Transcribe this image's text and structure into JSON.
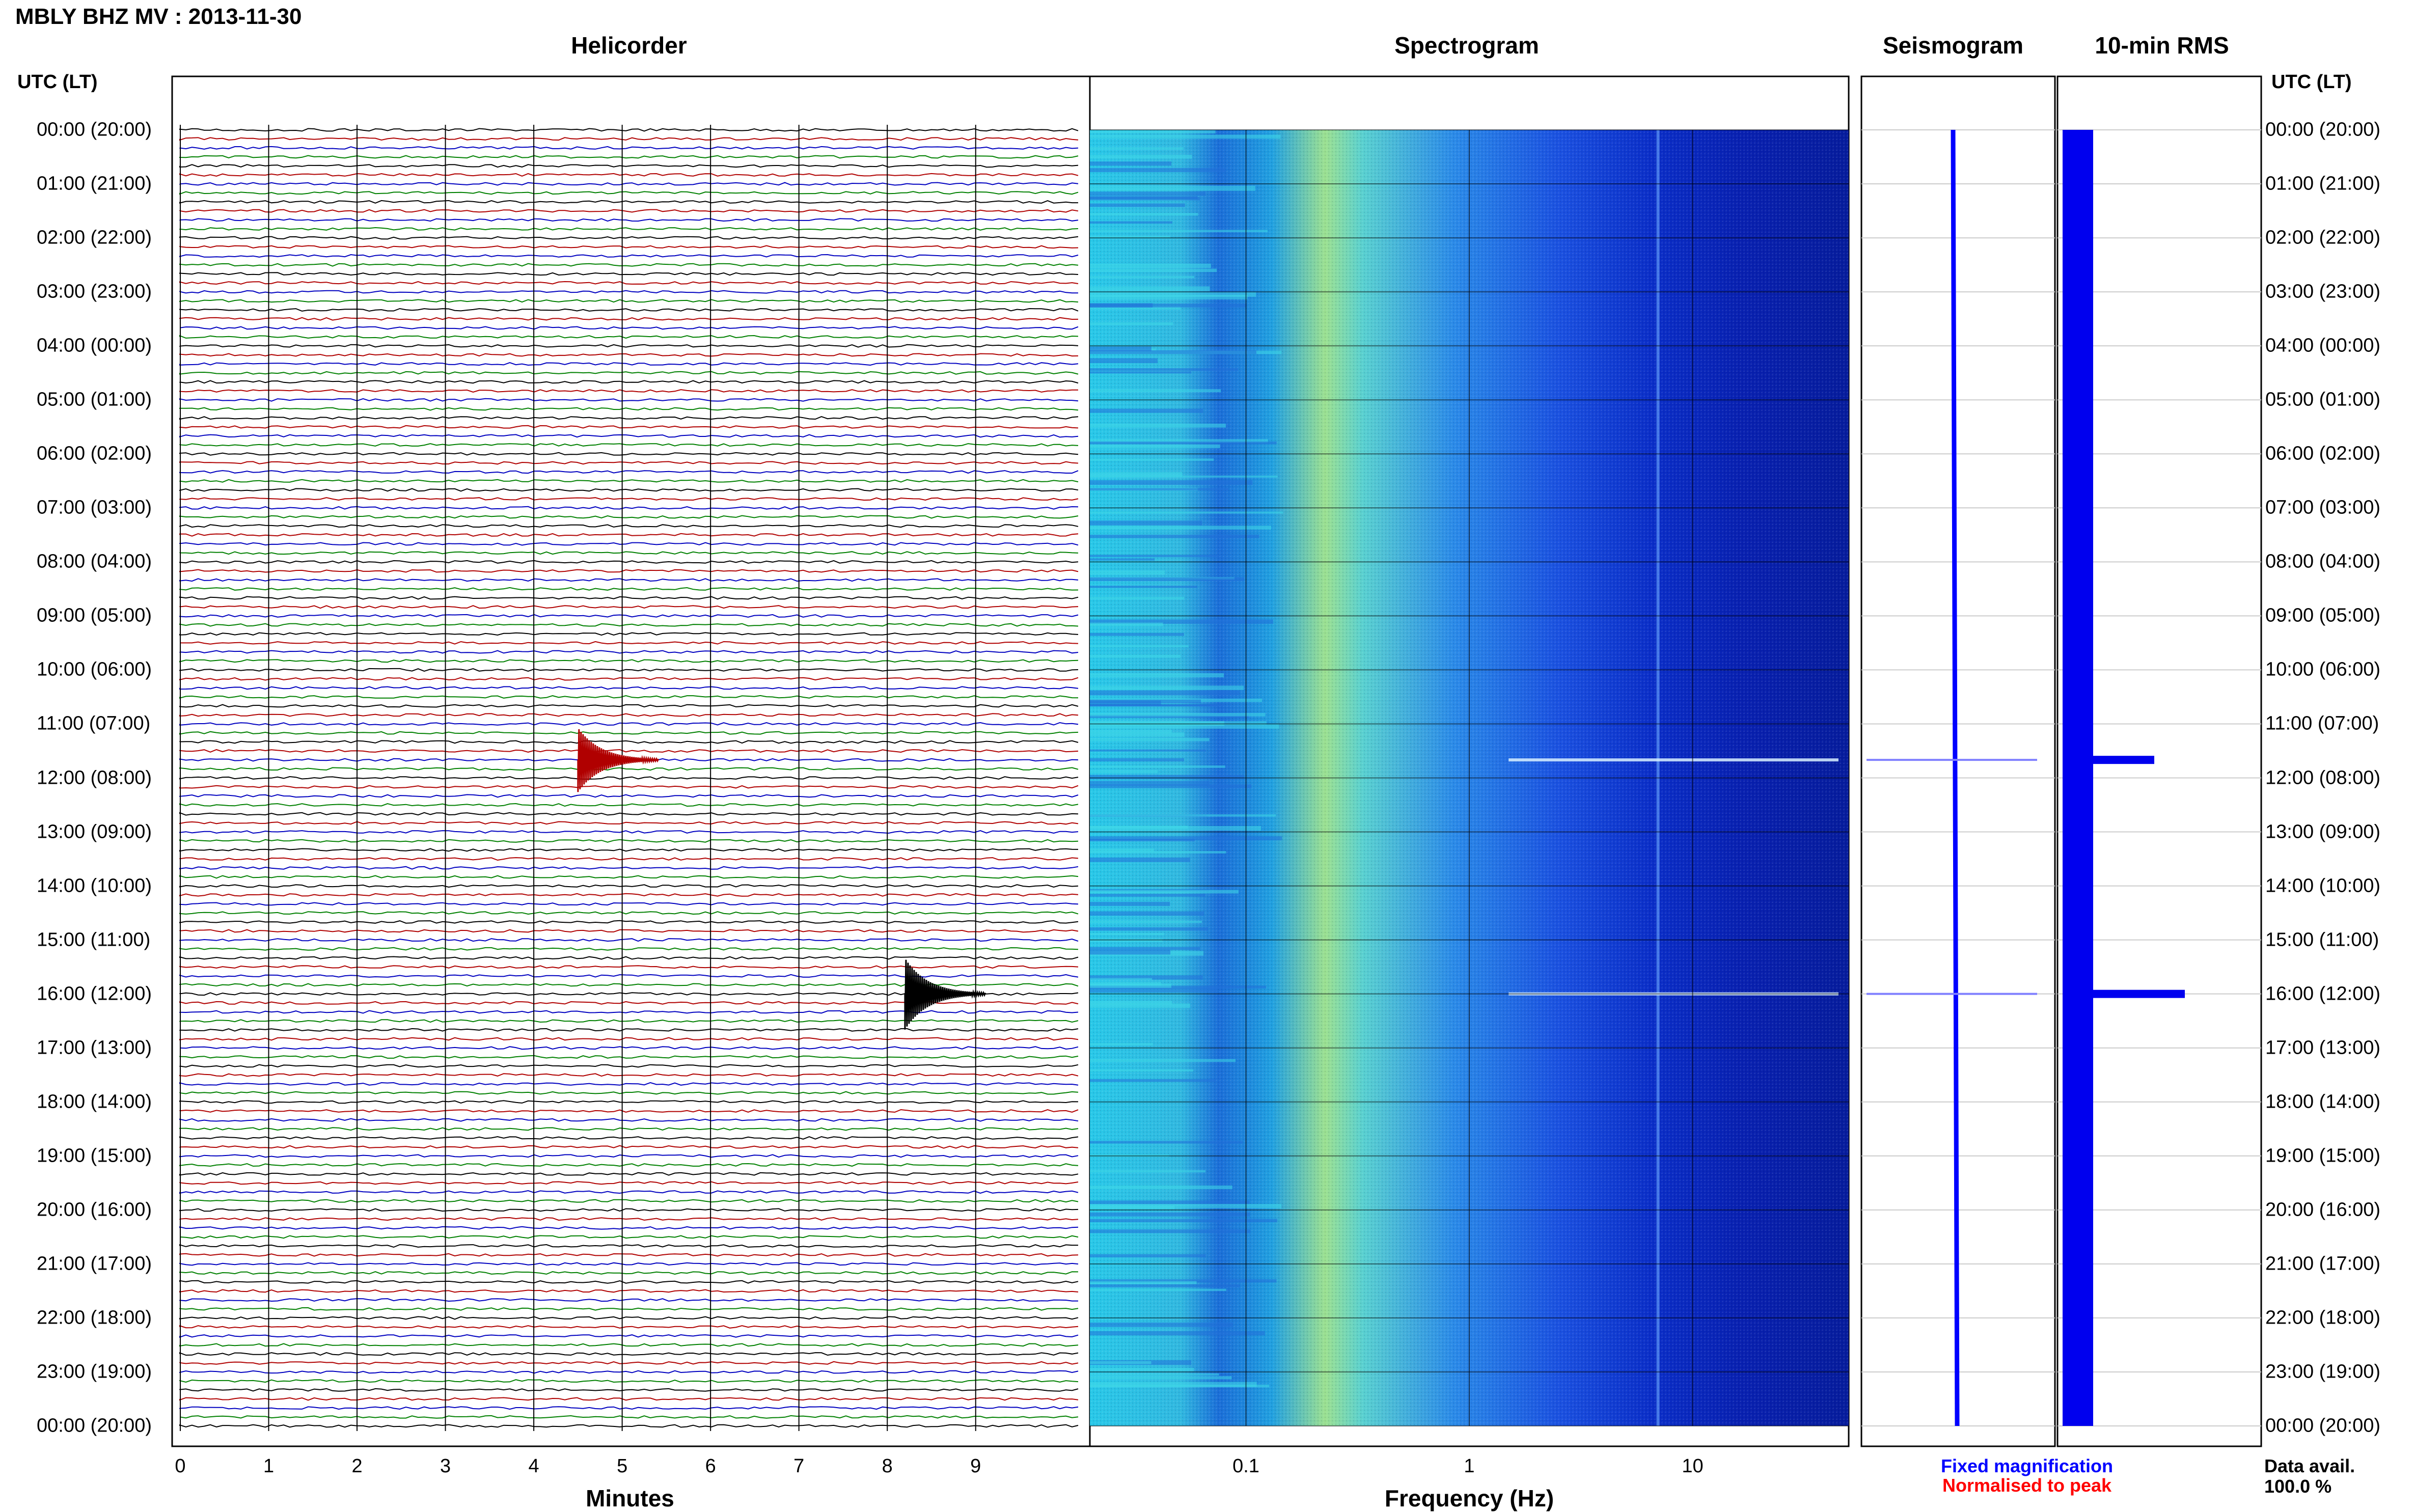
{
  "header": {
    "title": "MBLY BHZ MV : 2013-11-30"
  },
  "panels": {
    "helicorder": "Helicorder",
    "spectrogram": "Spectrogram",
    "seismogram": "Seismogram",
    "rms": "10-min RMS"
  },
  "axis": {
    "utc_label": "UTC (LT)",
    "minutes_label": "Minutes",
    "frequency_label": "Frequency (Hz)",
    "minute_ticks": [
      "0",
      "1",
      "2",
      "3",
      "4",
      "5",
      "6",
      "7",
      "8",
      "9"
    ],
    "freq_ticks": [
      "0.1",
      "1",
      "10"
    ]
  },
  "time_labels": [
    "00:00 (20:00)",
    "01:00 (21:00)",
    "02:00 (22:00)",
    "03:00 (23:00)",
    "04:00 (00:00)",
    "05:00 (01:00)",
    "06:00 (02:00)",
    "07:00 (03:00)",
    "08:00 (04:00)",
    "09:00 (05:00)",
    "10:00 (06:00)",
    "11:00 (07:00)",
    "12:00 (08:00)",
    "13:00 (09:00)",
    "14:00 (10:00)",
    "15:00 (11:00)",
    "16:00 (12:00)",
    "17:00 (13:00)",
    "18:00 (14:00)",
    "19:00 (15:00)",
    "20:00 (16:00)",
    "21:00 (17:00)",
    "22:00 (18:00)",
    "23:00 (19:00)",
    "00:00 (20:00)"
  ],
  "legend": {
    "fixed": "Fixed magnification",
    "normalised": "Normalised to peak",
    "fixed_color": "#0000ff",
    "normalised_color": "#ff0000"
  },
  "data_availability": {
    "label": "Data avail.",
    "value": "100.0 %"
  },
  "chart_data": {
    "type": "helicorder",
    "station": "MBLY",
    "channel": "BHZ",
    "network": "MV",
    "date": "2013-11-30",
    "trace_colors": [
      "#000000",
      "#b00000",
      "#0000c0",
      "#008000"
    ],
    "rows_per_hour": 6,
    "events": [
      {
        "utc": "11:40",
        "minute": 4.5,
        "relative_amplitude": 0.9,
        "color": "#b00000"
      },
      {
        "utc": "16:00",
        "minute": 8.2,
        "relative_amplitude": 1.0,
        "color": "#000000"
      }
    ],
    "spectrogram": {
      "freq_min_hz": 0.02,
      "freq_max_hz": 50,
      "x_scale": "log"
    },
    "rms": {
      "baseline": 0.15,
      "peaks": [
        {
          "utc": "11:40",
          "value": 0.45
        },
        {
          "utc": "16:00",
          "value": 0.6
        }
      ]
    },
    "seismogram_spikes": [
      "11:40",
      "16:00"
    ]
  }
}
